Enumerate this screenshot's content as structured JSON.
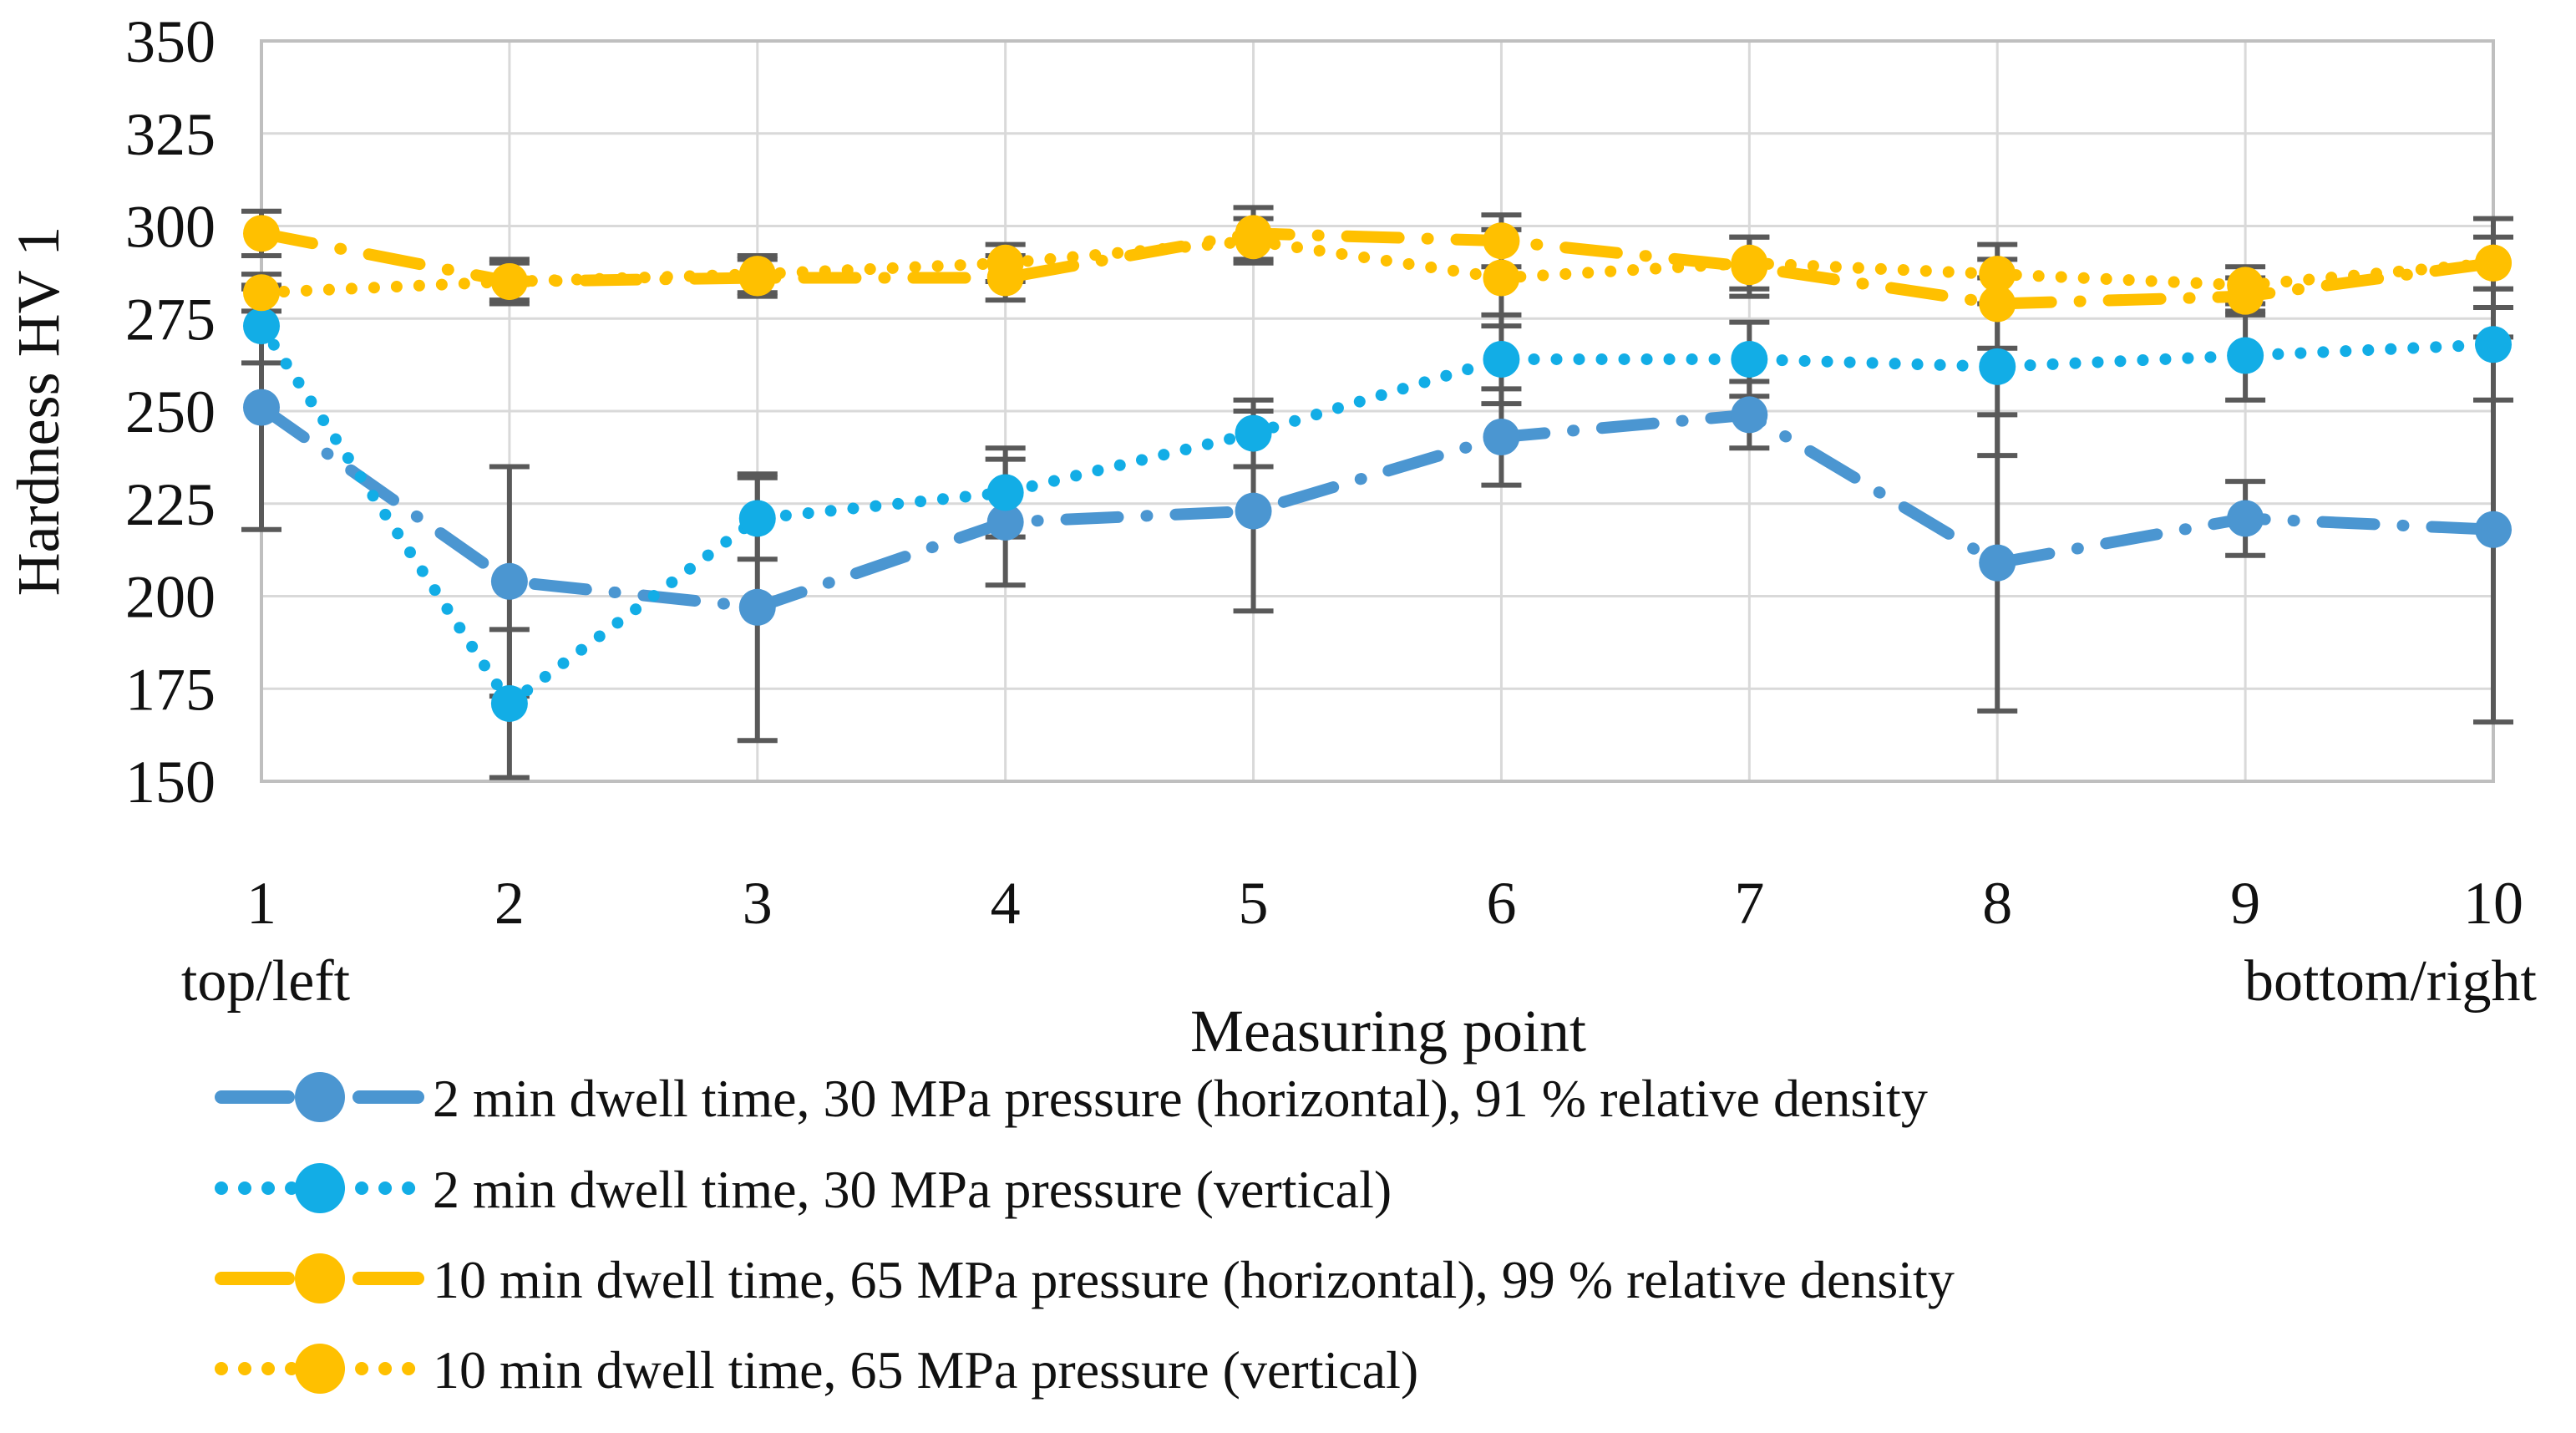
{
  "chart_data": {
    "type": "line",
    "title": "",
    "xlabel": "Measuring point",
    "ylabel": "Hardness HV 1",
    "x_annotation_left": "top/left",
    "x_annotation_right": "bottom/right",
    "categories": [
      "1",
      "2",
      "3",
      "4",
      "5",
      "6",
      "7",
      "8",
      "9",
      "10"
    ],
    "ylim": [
      150,
      350
    ],
    "yticks": [
      150,
      175,
      200,
      225,
      250,
      275,
      300,
      325,
      350
    ],
    "grid": true,
    "legend_position": "bottom-left",
    "colors": {
      "grid": "#D9D9D9",
      "frame": "#BFBFBF",
      "error_bar": "#595959",
      "text": "#111111",
      "blue_horizontal": "#4B96D1",
      "blue_vertical": "#12ADE6",
      "orange": "#FFC000"
    },
    "series": [
      {
        "name": "2 min dwell time, 30 MPa pressure (horizontal), 91 % relative density",
        "color": "#4B96D1",
        "line_style": "dash-dot",
        "marker": "circle",
        "values": [
          251,
          204,
          197,
          220,
          223,
          243,
          249,
          209,
          221,
          218
        ],
        "errors": [
          33,
          31,
          36,
          17,
          27,
          13,
          9,
          40,
          10,
          52
        ]
      },
      {
        "name": "2 min dwell time, 30 MPa pressure (vertical)",
        "color": "#12ADE6",
        "line_style": "dotted",
        "marker": "circle",
        "values": [
          273,
          171,
          221,
          228,
          244,
          264,
          264,
          262,
          265,
          268
        ],
        "errors": [
          10,
          20,
          11,
          12,
          9,
          12,
          10,
          24,
          12,
          15
        ]
      },
      {
        "name": "10 min dwell time, 65 MPa pressure (horizontal), 99 % relative density",
        "color": "#FFC000",
        "line_style": "dash-dot",
        "marker": "circle",
        "values": [
          298,
          285,
          286,
          286,
          298,
          296,
          289,
          279,
          281,
          290
        ],
        "errors": [
          6,
          6,
          5,
          6,
          7,
          7,
          8,
          12,
          5,
          12
        ]
      },
      {
        "name": "10 min dwell time, 65 MPa pressure (vertical)",
        "color": "#FFC000",
        "line_style": "dotted",
        "marker": "circle",
        "values": [
          282,
          285,
          287,
          290,
          296,
          286,
          290,
          287,
          284,
          290
        ],
        "errors": [
          5,
          5,
          5,
          5,
          6,
          13,
          7,
          8,
          5,
          7
        ]
      }
    ]
  }
}
